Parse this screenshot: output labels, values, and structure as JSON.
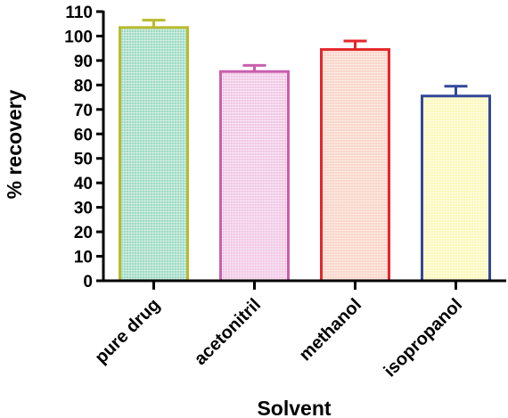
{
  "chart_data": {
    "type": "bar",
    "xlabel": "Solvent",
    "ylabel": "% recovery",
    "ylim": [
      0,
      110
    ],
    "yticks": [
      0,
      10,
      20,
      30,
      40,
      50,
      60,
      70,
      80,
      90,
      100,
      110
    ],
    "categories": [
      "pure drug",
      "acetonitril",
      "methanol",
      "isopropanol"
    ],
    "values": [
      103.5,
      85.5,
      94.5,
      75.5
    ],
    "errors": [
      3,
      2.5,
      3.5,
      4
    ],
    "edge_colors": [
      "#b9bb2e",
      "#c95fae",
      "#e3272b",
      "#34489a"
    ],
    "fill_colors": [
      "#9ad9c2",
      "#f0c4e4",
      "#fbd1c5",
      "#fdf8b7"
    ],
    "grid": false,
    "legend": "none"
  }
}
